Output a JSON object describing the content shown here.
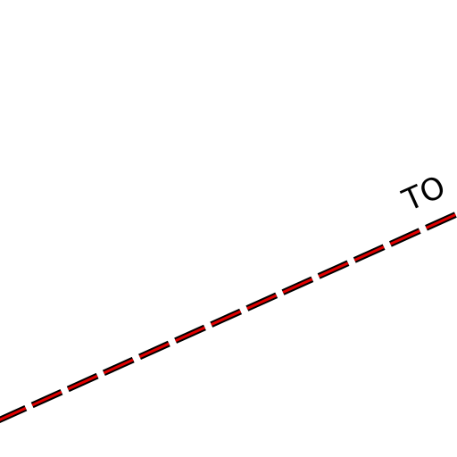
{
  "map": {
    "road_label": "TO",
    "line_colors": {
      "casing": "#000000",
      "dash": "#e00000"
    },
    "line_style": "red-and-black-dashed"
  }
}
